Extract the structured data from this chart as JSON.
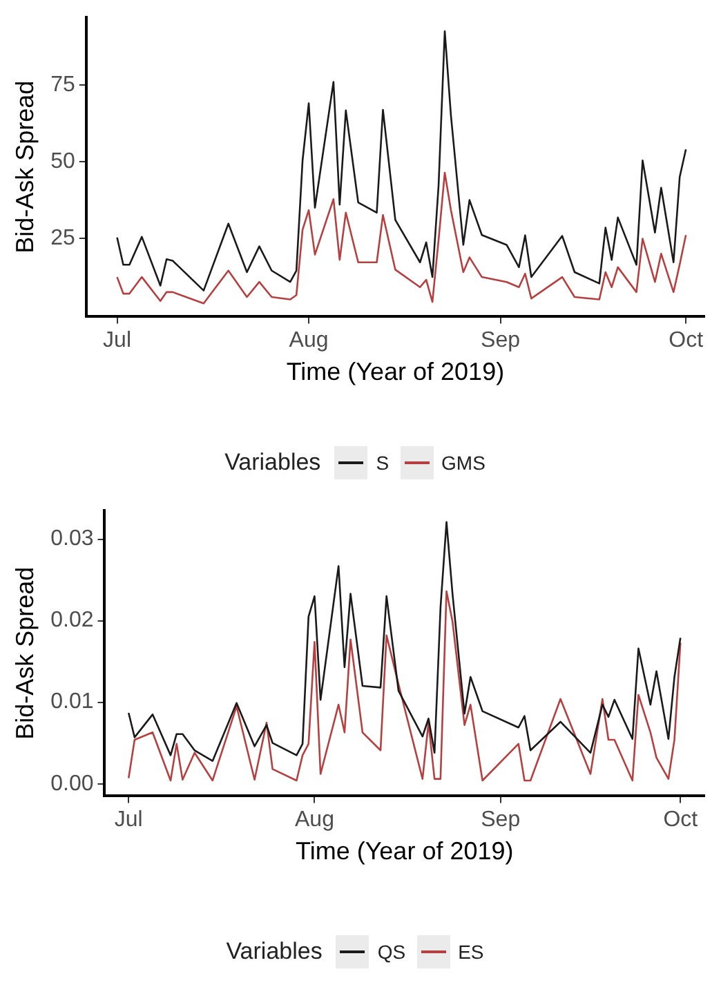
{
  "chart_data": [
    {
      "type": "line",
      "xlabel": "Time (Year of 2019)",
      "ylabel": "Bid-Ask Spread",
      "legend_title": "Variables",
      "legend": "bottom",
      "x": [
        "2019-07-01",
        "2019-07-02",
        "2019-07-03",
        "2019-07-05",
        "2019-07-08",
        "2019-07-09",
        "2019-07-10",
        "2019-07-15",
        "2019-07-19",
        "2019-07-22",
        "2019-07-24",
        "2019-07-26",
        "2019-07-29",
        "2019-07-30",
        "2019-07-31",
        "2019-08-01",
        "2019-08-02",
        "2019-08-05",
        "2019-08-06",
        "2019-08-07",
        "2019-08-09",
        "2019-08-12",
        "2019-08-13",
        "2019-08-15",
        "2019-08-19",
        "2019-08-20",
        "2019-08-21",
        "2019-08-22",
        "2019-08-23",
        "2019-08-24",
        "2019-08-26",
        "2019-08-27",
        "2019-08-29",
        "2019-09-02",
        "2019-09-04",
        "2019-09-05",
        "2019-09-06",
        "2019-09-11",
        "2019-09-13",
        "2019-09-17",
        "2019-09-18",
        "2019-09-19",
        "2019-09-20",
        "2019-09-23",
        "2019-09-24",
        "2019-09-26",
        "2019-09-27",
        "2019-09-29",
        "2019-09-30",
        "2019-10-01"
      ],
      "series": [
        {
          "name": "S",
          "color": "#1a1a1a",
          "values": [
            25.3,
            16.4,
            16.4,
            25.5,
            9.6,
            18.2,
            17.7,
            8.0,
            29.8,
            14,
            22.4,
            14.5,
            10.8,
            14.5,
            50.4,
            69,
            35,
            76,
            36,
            66.7,
            36.7,
            33.4,
            66.9,
            31,
            17.2,
            23.7,
            12.4,
            42.3,
            92.5,
            65,
            22.9,
            37.5,
            26.1,
            22.9,
            15.6,
            26,
            12.4,
            25.8,
            14,
            10.3,
            28.5,
            18,
            31.8,
            16.4,
            50.4,
            26.9,
            41.5,
            17.2,
            45,
            54
          ]
        },
        {
          "name": "GMS",
          "color": "#b5403f",
          "values": [
            12.4,
            7,
            7,
            12.4,
            4.6,
            7.5,
            7.5,
            3.8,
            14.5,
            5.9,
            10.8,
            5.9,
            5.1,
            6.5,
            27.8,
            34.2,
            19.7,
            37.8,
            18,
            33.4,
            17.2,
            17.2,
            32.6,
            14.8,
            9.1,
            11.5,
            4.3,
            24.5,
            46.4,
            34.2,
            14,
            18.8,
            12.4,
            10.8,
            9.1,
            13.5,
            5.4,
            12.4,
            5.9,
            5.1,
            14,
            9.1,
            15.6,
            7.5,
            24.9,
            10.8,
            20,
            7.5,
            16.5,
            26.1
          ]
        }
      ],
      "xlim": [
        "2019-06-26",
        "2019-10-04"
      ],
      "xticks": [
        {
          "value": "2019-07-01",
          "label": "Jul"
        },
        {
          "value": "2019-08-01",
          "label": "Aug"
        },
        {
          "value": "2019-09-01",
          "label": "Sep"
        },
        {
          "value": "2019-10-01",
          "label": "Oct"
        }
      ],
      "ylim": [
        -0.5,
        97
      ],
      "yticks": [
        25,
        50,
        75
      ]
    },
    {
      "type": "line",
      "xlabel": "Time (Year of 2019)",
      "ylabel": "Bid-Ask Spread",
      "legend_title": "Variables",
      "legend": "bottom",
      "x": [
        "2019-07-01",
        "2019-07-02",
        "2019-07-05",
        "2019-07-08",
        "2019-07-09",
        "2019-07-10",
        "2019-07-12",
        "2019-07-15",
        "2019-07-19",
        "2019-07-22",
        "2019-07-24",
        "2019-07-25",
        "2019-07-29",
        "2019-07-30",
        "2019-07-31",
        "2019-08-01",
        "2019-08-02",
        "2019-08-05",
        "2019-08-06",
        "2019-08-07",
        "2019-08-09",
        "2019-08-12",
        "2019-08-13",
        "2019-08-15",
        "2019-08-19",
        "2019-08-20",
        "2019-08-21",
        "2019-08-22",
        "2019-08-23",
        "2019-08-24",
        "2019-08-26",
        "2019-08-27",
        "2019-08-29",
        "2019-09-04",
        "2019-09-05",
        "2019-09-06",
        "2019-09-11",
        "2019-09-16",
        "2019-09-18",
        "2019-09-19",
        "2019-09-20",
        "2019-09-23",
        "2019-09-24",
        "2019-09-26",
        "2019-09-27",
        "2019-09-29",
        "2019-09-30",
        "2019-10-01"
      ],
      "series": [
        {
          "name": "QS",
          "color": "#1a1a1a",
          "values": [
            0.0087,
            0.0057,
            0.0085,
            0.0035,
            0.0061,
            0.0061,
            0.0041,
            0.0028,
            0.0099,
            0.0046,
            0.0072,
            0.005,
            0.0035,
            0.0049,
            0.0205,
            0.023,
            0.0103,
            0.0267,
            0.0143,
            0.0233,
            0.012,
            0.0118,
            0.023,
            0.0114,
            0.0058,
            0.008,
            0.0038,
            0.0216,
            0.0321,
            0.0233,
            0.0086,
            0.0131,
            0.0089,
            0.0069,
            0.0083,
            0.0041,
            0.0076,
            0.0038,
            0.0097,
            0.0082,
            0.0103,
            0.0055,
            0.0166,
            0.0097,
            0.0138,
            0.0055,
            0.0131,
            0.0179
          ]
        },
        {
          "name": "ES",
          "color": "#b5403f",
          "values": [
            0.0007,
            0.0054,
            0.0063,
            0.0004,
            0.0049,
            0.0005,
            0.0038,
            0.0004,
            0.0095,
            0.0005,
            0.0075,
            0.0018,
            0.0004,
            0.0035,
            0.0049,
            0.0174,
            0.0012,
            0.0097,
            0.0063,
            0.0177,
            0.0063,
            0.0041,
            0.0182,
            0.0122,
            0.0006,
            0.0075,
            0.0006,
            0.0006,
            0.0236,
            0.0199,
            0.0072,
            0.0097,
            0.0004,
            0.0049,
            0.0004,
            0.0004,
            0.0104,
            0.0012,
            0.0104,
            0.0054,
            0.0054,
            0.0004,
            0.0109,
            0.0063,
            0.0032,
            0.0006,
            0.0054,
            0.0173
          ]
        }
      ],
      "xlim": [
        "2019-06-27",
        "2019-10-05"
      ],
      "xticks": [
        {
          "value": "2019-07-01",
          "label": "Jul"
        },
        {
          "value": "2019-08-01",
          "label": "Aug"
        },
        {
          "value": "2019-09-01",
          "label": "Sep"
        },
        {
          "value": "2019-10-01",
          "label": "Oct"
        }
      ],
      "ylim": [
        -0.0015,
        0.0335
      ],
      "yticks": [
        {
          "value": 0,
          "label": "0.00"
        },
        {
          "value": 0.01,
          "label": "0.01"
        },
        {
          "value": 0.02,
          "label": "0.02"
        },
        {
          "value": 0.03,
          "label": "0.03"
        }
      ]
    }
  ]
}
